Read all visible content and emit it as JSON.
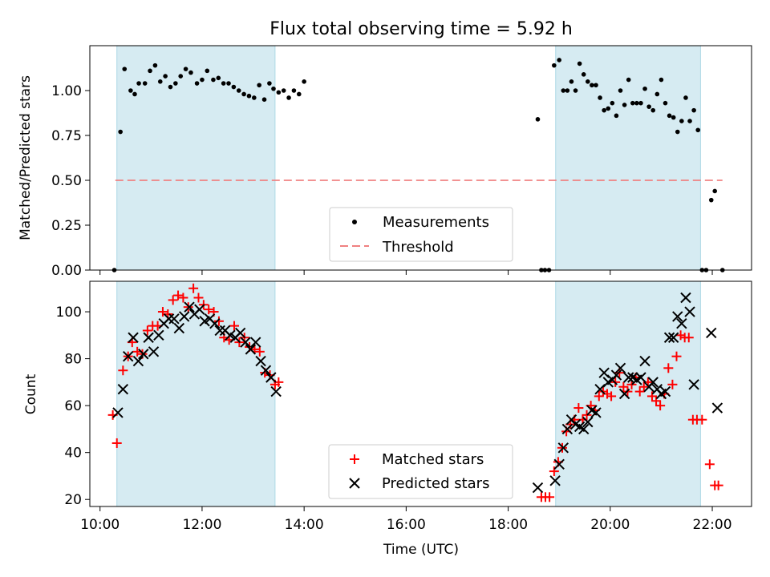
{
  "colors": {
    "shade": "#add8e6",
    "matched": "#ff0000",
    "predicted": "#000000",
    "threshold": "#f08080",
    "measurement": "#000000"
  },
  "chart_data": [
    {
      "type": "scatter",
      "title": "Flux total observing time = 5.92 h",
      "xlabel": "",
      "ylabel": "Matched/Predicted stars",
      "x_unit": "hours UTC",
      "xlim": [
        9.8,
        22.77
      ],
      "ylim": [
        0,
        1.25
      ],
      "yticks": [
        0.0,
        0.25,
        0.5,
        0.75,
        1.0
      ],
      "ytick_labels": [
        "0.00",
        "0.25",
        "0.50",
        "0.75",
        "1.00"
      ],
      "shaded_intervals": [
        [
          10.33,
          13.43
        ],
        [
          18.93,
          21.77
        ]
      ],
      "legend": {
        "position": "lower center",
        "entries": [
          "Measurements",
          "Threshold"
        ]
      },
      "threshold": {
        "name": "Threshold",
        "y": 0.5,
        "x_range": [
          10.3,
          22.2
        ],
        "style": "dashed"
      },
      "series": [
        {
          "name": "Measurements",
          "marker": "dot",
          "points": [
            [
              10.28,
              0.0
            ],
            [
              10.4,
              0.77
            ],
            [
              10.48,
              1.12
            ],
            [
              10.6,
              1.0
            ],
            [
              10.68,
              0.98
            ],
            [
              10.76,
              1.04
            ],
            [
              10.88,
              1.04
            ],
            [
              10.98,
              1.11
            ],
            [
              11.08,
              1.14
            ],
            [
              11.18,
              1.05
            ],
            [
              11.28,
              1.08
            ],
            [
              11.38,
              1.02
            ],
            [
              11.48,
              1.04
            ],
            [
              11.58,
              1.08
            ],
            [
              11.68,
              1.12
            ],
            [
              11.78,
              1.1
            ],
            [
              11.9,
              1.04
            ],
            [
              12.0,
              1.06
            ],
            [
              12.1,
              1.11
            ],
            [
              12.22,
              1.06
            ],
            [
              12.32,
              1.07
            ],
            [
              12.42,
              1.04
            ],
            [
              12.52,
              1.04
            ],
            [
              12.62,
              1.02
            ],
            [
              12.72,
              1.0
            ],
            [
              12.82,
              0.98
            ],
            [
              12.92,
              0.97
            ],
            [
              13.02,
              0.96
            ],
            [
              13.12,
              1.03
            ],
            [
              13.22,
              0.95
            ],
            [
              13.32,
              1.04
            ],
            [
              13.4,
              1.01
            ],
            [
              13.5,
              0.99
            ],
            [
              13.6,
              1.0
            ],
            [
              13.7,
              0.96
            ],
            [
              13.8,
              1.0
            ],
            [
              13.9,
              0.98
            ],
            [
              14.0,
              1.05
            ],
            [
              18.58,
              0.84
            ],
            [
              18.65,
              0.0
            ],
            [
              18.72,
              0.0
            ],
            [
              18.8,
              0.0
            ],
            [
              18.9,
              1.14
            ],
            [
              19.0,
              1.17
            ],
            [
              19.08,
              1.0
            ],
            [
              19.16,
              1.0
            ],
            [
              19.24,
              1.05
            ],
            [
              19.32,
              1.0
            ],
            [
              19.4,
              1.15
            ],
            [
              19.48,
              1.09
            ],
            [
              19.56,
              1.05
            ],
            [
              19.64,
              1.03
            ],
            [
              19.72,
              1.03
            ],
            [
              19.8,
              0.96
            ],
            [
              19.88,
              0.89
            ],
            [
              19.96,
              0.9
            ],
            [
              20.04,
              0.93
            ],
            [
              20.12,
              0.86
            ],
            [
              20.2,
              1.0
            ],
            [
              20.28,
              0.92
            ],
            [
              20.36,
              1.06
            ],
            [
              20.44,
              0.93
            ],
            [
              20.52,
              0.93
            ],
            [
              20.6,
              0.93
            ],
            [
              20.68,
              1.01
            ],
            [
              20.76,
              0.91
            ],
            [
              20.84,
              0.89
            ],
            [
              20.92,
              0.98
            ],
            [
              21.0,
              1.06
            ],
            [
              21.08,
              0.93
            ],
            [
              21.16,
              0.86
            ],
            [
              21.24,
              0.85
            ],
            [
              21.32,
              0.77
            ],
            [
              21.4,
              0.83
            ],
            [
              21.48,
              0.96
            ],
            [
              21.56,
              0.83
            ],
            [
              21.64,
              0.89
            ],
            [
              21.72,
              0.78
            ],
            [
              21.8,
              0.0
            ],
            [
              21.88,
              0.0
            ],
            [
              21.98,
              0.39
            ],
            [
              22.05,
              0.44
            ],
            [
              22.2,
              0.0
            ]
          ]
        }
      ]
    },
    {
      "type": "scatter",
      "title": "",
      "xlabel": "Time (UTC)",
      "ylabel": "Count",
      "x_unit": "hours UTC",
      "xlim": [
        9.8,
        22.77
      ],
      "ylim": [
        17,
        113
      ],
      "xticks": [
        10,
        12,
        14,
        16,
        18,
        20,
        22
      ],
      "xtick_labels": [
        "10:00",
        "12:00",
        "14:00",
        "16:00",
        "18:00",
        "20:00",
        "22:00"
      ],
      "yticks": [
        20,
        40,
        60,
        80,
        100
      ],
      "ytick_labels": [
        "20",
        "40",
        "60",
        "80",
        "100"
      ],
      "shaded_intervals": [
        [
          10.33,
          13.43
        ],
        [
          18.93,
          21.77
        ]
      ],
      "legend": {
        "position": "lower center",
        "entries": [
          "Matched stars",
          "Predicted stars"
        ]
      },
      "series": [
        {
          "name": "Matched stars",
          "marker": "plus",
          "points": [
            [
              10.25,
              56
            ],
            [
              10.33,
              44
            ],
            [
              10.45,
              75
            ],
            [
              10.55,
              81
            ],
            [
              10.63,
              87
            ],
            [
              10.73,
              83
            ],
            [
              10.83,
              82
            ],
            [
              10.93,
              92
            ],
            [
              11.03,
              94
            ],
            [
              11.13,
              94
            ],
            [
              11.23,
              100
            ],
            [
              11.33,
              99
            ],
            [
              11.43,
              105
            ],
            [
              11.53,
              107
            ],
            [
              11.63,
              106
            ],
            [
              11.73,
              102
            ],
            [
              11.83,
              110
            ],
            [
              11.93,
              106
            ],
            [
              12.03,
              103
            ],
            [
              12.13,
              101
            ],
            [
              12.23,
              100
            ],
            [
              12.33,
              96
            ],
            [
              12.43,
              89
            ],
            [
              12.53,
              88
            ],
            [
              12.63,
              94
            ],
            [
              12.73,
              87
            ],
            [
              12.83,
              89
            ],
            [
              12.93,
              85
            ],
            [
              13.03,
              84
            ],
            [
              13.13,
              83
            ],
            [
              13.23,
              74
            ],
            [
              13.33,
              73
            ],
            [
              13.43,
              69
            ],
            [
              13.5,
              70
            ],
            [
              18.65,
              21
            ],
            [
              18.73,
              21
            ],
            [
              18.81,
              21
            ],
            [
              18.9,
              32
            ],
            [
              18.98,
              36
            ],
            [
              19.06,
              42
            ],
            [
              19.14,
              49
            ],
            [
              19.22,
              52
            ],
            [
              19.3,
              54
            ],
            [
              19.38,
              59
            ],
            [
              19.46,
              54
            ],
            [
              19.54,
              56
            ],
            [
              19.62,
              60
            ],
            [
              19.7,
              58
            ],
            [
              19.78,
              64
            ],
            [
              19.86,
              66
            ],
            [
              19.94,
              65
            ],
            [
              20.02,
              64
            ],
            [
              20.1,
              70
            ],
            [
              20.18,
              74
            ],
            [
              20.26,
              68
            ],
            [
              20.34,
              66
            ],
            [
              20.42,
              69
            ],
            [
              20.5,
              72
            ],
            [
              20.58,
              66
            ],
            [
              20.66,
              68
            ],
            [
              20.74,
              70
            ],
            [
              20.82,
              64
            ],
            [
              20.9,
              62
            ],
            [
              20.98,
              60
            ],
            [
              21.06,
              65
            ],
            [
              21.14,
              76
            ],
            [
              21.22,
              69
            ],
            [
              21.3,
              81
            ],
            [
              21.38,
              90
            ],
            [
              21.46,
              89
            ],
            [
              21.54,
              89
            ],
            [
              21.62,
              54
            ],
            [
              21.7,
              54
            ],
            [
              21.8,
              54
            ],
            [
              21.95,
              35
            ],
            [
              22.05,
              26
            ],
            [
              22.12,
              26
            ]
          ]
        },
        {
          "name": "Predicted stars",
          "marker": "x",
          "points": [
            [
              10.35,
              57
            ],
            [
              10.45,
              67
            ],
            [
              10.55,
              81
            ],
            [
              10.65,
              89
            ],
            [
              10.75,
              79
            ],
            [
              10.85,
              82
            ],
            [
              10.95,
              89
            ],
            [
              11.05,
              83
            ],
            [
              11.15,
              90
            ],
            [
              11.25,
              95
            ],
            [
              11.35,
              97
            ],
            [
              11.45,
              97
            ],
            [
              11.55,
              93
            ],
            [
              11.65,
              98
            ],
            [
              11.75,
              102
            ],
            [
              11.85,
              99
            ],
            [
              11.95,
              101
            ],
            [
              12.05,
              96
            ],
            [
              12.15,
              97
            ],
            [
              12.25,
              95
            ],
            [
              12.35,
              92
            ],
            [
              12.45,
              92
            ],
            [
              12.55,
              90
            ],
            [
              12.65,
              89
            ],
            [
              12.75,
              91
            ],
            [
              12.85,
              87
            ],
            [
              12.95,
              84
            ],
            [
              13.05,
              87
            ],
            [
              13.15,
              79
            ],
            [
              13.25,
              75
            ],
            [
              13.35,
              72
            ],
            [
              13.45,
              66
            ],
            [
              18.58,
              25
            ],
            [
              18.92,
              28
            ],
            [
              19.0,
              35
            ],
            [
              19.08,
              42
            ],
            [
              19.16,
              50
            ],
            [
              19.24,
              54
            ],
            [
              19.32,
              52
            ],
            [
              19.4,
              51
            ],
            [
              19.48,
              50
            ],
            [
              19.56,
              53
            ],
            [
              19.64,
              58
            ],
            [
              19.72,
              57
            ],
            [
              19.8,
              67
            ],
            [
              19.88,
              74
            ],
            [
              19.96,
              70
            ],
            [
              20.04,
              71
            ],
            [
              20.12,
              73
            ],
            [
              20.2,
              76
            ],
            [
              20.28,
              65
            ],
            [
              20.36,
              72
            ],
            [
              20.44,
              72
            ],
            [
              20.52,
              71
            ],
            [
              20.6,
              72
            ],
            [
              20.68,
              79
            ],
            [
              20.76,
              68
            ],
            [
              20.84,
              70
            ],
            [
              20.92,
              67
            ],
            [
              21.0,
              65
            ],
            [
              21.08,
              66
            ],
            [
              21.16,
              89
            ],
            [
              21.24,
              89
            ],
            [
              21.32,
              98
            ],
            [
              21.4,
              95
            ],
            [
              21.48,
              106
            ],
            [
              21.56,
              100
            ],
            [
              21.64,
              69
            ],
            [
              21.98,
              91
            ],
            [
              22.1,
              59
            ]
          ]
        }
      ]
    }
  ]
}
